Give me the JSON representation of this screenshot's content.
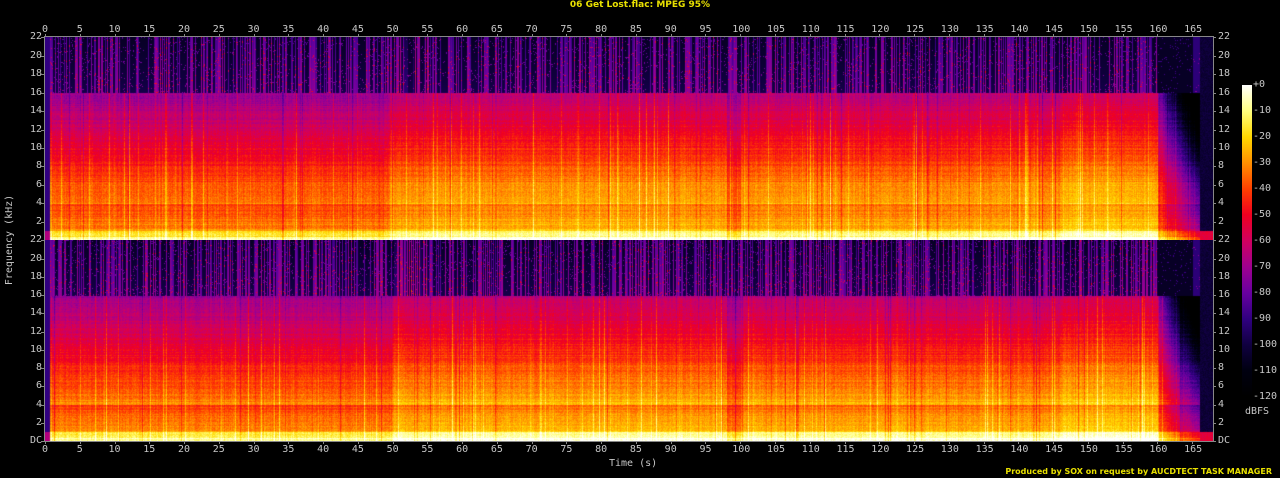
{
  "title": "06 Get Lost.flac: MPEG 95%",
  "credit": "Produced by SOX on request by AUCDTECT TASK MANAGER",
  "chart_data": {
    "type": "heatmap",
    "subtype": "spectrogram",
    "title": "06 Get Lost.flac: MPEG 95%",
    "xlabel": "Time (s)",
    "ylabel": "Frequency (kHz)",
    "colorbar_label": "dBFS",
    "channels": 2,
    "x_range": [
      0,
      168
    ],
    "y_range_khz": [
      0,
      22.05
    ],
    "x_ticks": [
      0,
      5,
      10,
      15,
      20,
      25,
      30,
      35,
      40,
      45,
      50,
      55,
      60,
      65,
      70,
      75,
      80,
      85,
      90,
      95,
      100,
      105,
      110,
      115,
      120,
      125,
      130,
      135,
      140,
      145,
      150,
      155,
      160,
      165
    ],
    "y_ticks_labels": [
      "DC",
      "2",
      "4",
      "6",
      "8",
      "10",
      "12",
      "14",
      "16",
      "18",
      "20",
      "22"
    ],
    "y_ticks_values": [
      0,
      2,
      4,
      6,
      8,
      10,
      12,
      14,
      16,
      18,
      20,
      22
    ],
    "colorbar_ticks": [
      "+0",
      "-10",
      "-20",
      "-30",
      "-40",
      "-50",
      "-60",
      "-70",
      "-80",
      "-90",
      "-100",
      "-110",
      "-120"
    ],
    "colorbar_range_db": [
      -120,
      0
    ],
    "colormap_stops": [
      "#ffffff",
      "#ffff80",
      "#ffd800",
      "#ff9000",
      "#ff4000",
      "#f00020",
      "#d00060",
      "#a00090",
      "#6800a0",
      "#300080",
      "#100040",
      "#000010",
      "#000000"
    ],
    "lowpass_cutoff_khz": 16,
    "lowpass_end_s": 160,
    "features": {
      "cutoff_shelf_khz": 16,
      "fadeout_start_s": 160,
      "track_end_s": 167,
      "loud_sections_s": [
        [
          50,
          98
        ],
        [
          100,
          146
        ],
        [
          146,
          160
        ]
      ],
      "dense_bass_below_khz": 4
    }
  },
  "axes": {
    "xlabel": "Time (s)",
    "ylabel": "Frequency (kHz)",
    "colorbar_label": "dBFS"
  }
}
